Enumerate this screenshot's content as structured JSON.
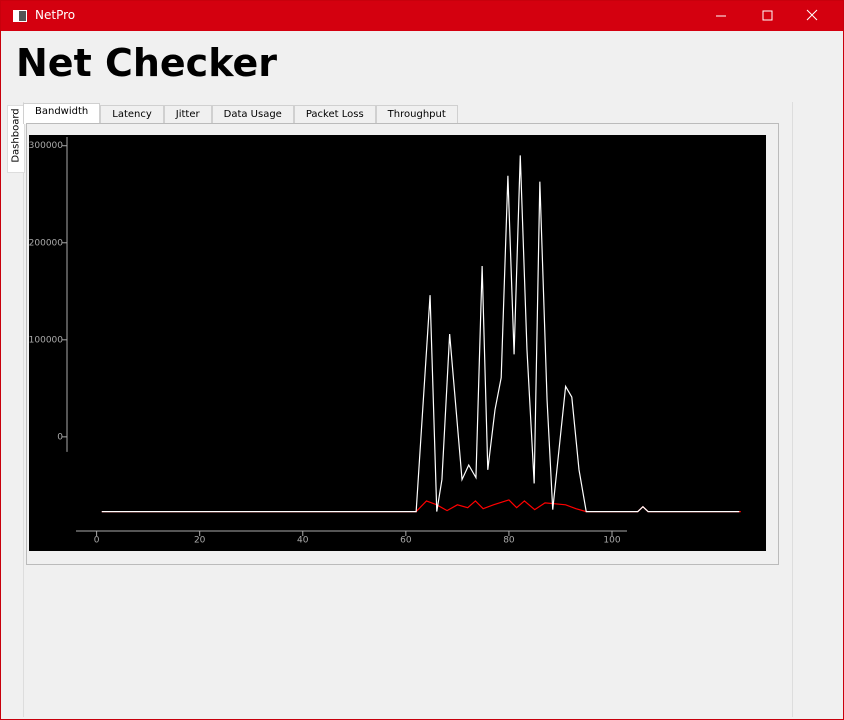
{
  "window": {
    "title": "NetPro"
  },
  "header": {
    "title": "Net Checker"
  },
  "side_tabs": [
    "Dashboard"
  ],
  "tabs": [
    "Bandwidth",
    "Latency",
    "Jitter",
    "Data Usage",
    "Packet Loss",
    "Throughput"
  ],
  "chart_data": {
    "type": "line",
    "xlim": [
      -4,
      126
    ],
    "xticks": [
      0,
      20,
      40,
      60,
      80,
      100
    ],
    "ylim": [
      -97000,
      309000
    ],
    "yticks": [
      0,
      100000,
      200000,
      300000
    ],
    "series": [
      {
        "color": "#ffffff",
        "x": [
          1,
          62,
          64.7,
          66,
          67,
          68.5,
          70.9,
          72.2,
          73.6,
          74.8,
          75.9,
          77.3,
          78.5,
          79.8,
          81,
          82.2,
          83.5,
          84.9,
          86,
          87.4,
          88.5,
          91,
          92.2,
          93.6,
          95,
          105,
          106,
          107,
          124.7
        ],
        "values": [
          -77000,
          -77000,
          146000,
          -77000,
          -44000,
          106000,
          -44000,
          -29000,
          -42000,
          176000,
          -34000,
          28000,
          61000,
          269000,
          85000,
          290000,
          90000,
          -48000,
          263000,
          38000,
          -75000,
          52000,
          41000,
          -34000,
          -77000,
          -77000,
          -72000,
          -77000,
          -77000
        ]
      },
      {
        "color": "#ff0000",
        "x": [
          1,
          62,
          64,
          66,
          68,
          70,
          72,
          73.5,
          75,
          77,
          80,
          81.5,
          83,
          85,
          87,
          89,
          91,
          93,
          95,
          105,
          106,
          107,
          125
        ],
        "values": [
          -77000,
          -77000,
          -66000,
          -70000,
          -76000,
          -70000,
          -73000,
          -66000,
          -74000,
          -70000,
          -65000,
          -73000,
          -66000,
          -75000,
          -68000,
          -69000,
          -70000,
          -74000,
          -77000,
          -77000,
          -72000,
          -77000,
          -77000
        ]
      }
    ]
  }
}
